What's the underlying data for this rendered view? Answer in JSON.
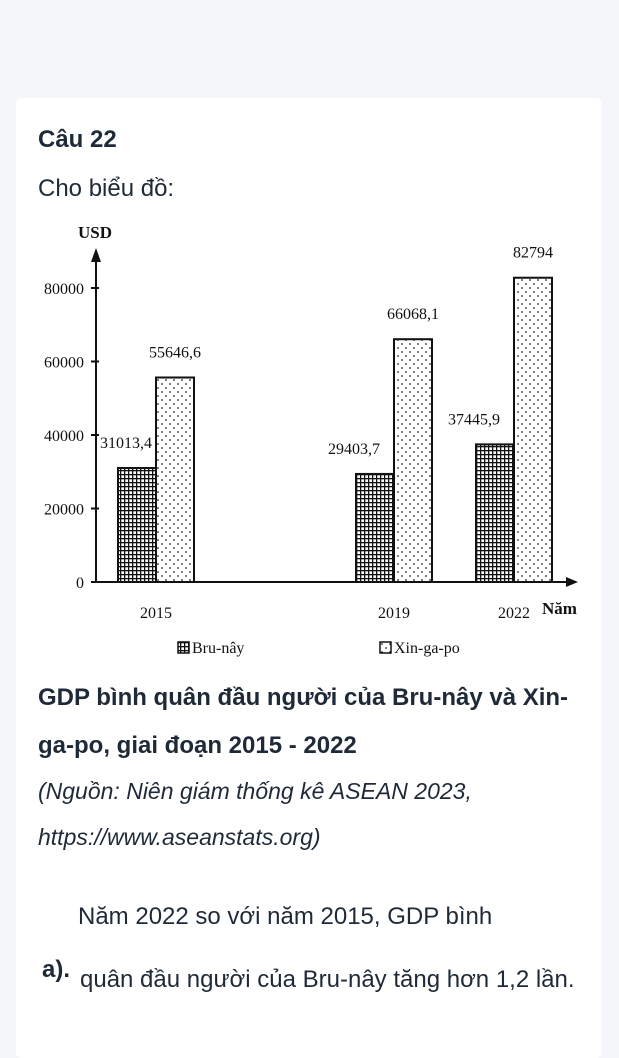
{
  "question": {
    "title": "Câu 22",
    "intro": "Cho biểu đồ:"
  },
  "chart_data": {
    "type": "bar",
    "ylabel": "USD",
    "xlabel": "Năm",
    "categories": [
      "2015",
      "2019",
      "2022"
    ],
    "series": [
      {
        "name": "Bru-nây",
        "values": [
          31013.4,
          29403.7,
          37445.9
        ],
        "labels": [
          "31013,4",
          "29403,7",
          "37445,9"
        ]
      },
      {
        "name": "Xin-ga-po",
        "values": [
          55646.6,
          66068.1,
          82794
        ],
        "labels": [
          "55646,6",
          "66068,1",
          "82794"
        ]
      }
    ],
    "yticks": [
      "0",
      "20000",
      "40000",
      "60000",
      "80000"
    ],
    "ylim": [
      0,
      90000
    ],
    "legend": "bottom",
    "grid": false
  },
  "caption": {
    "title": "GDP bình quân đầu người của Bru-nây và Xin-ga-po, giai đoạn 2015 - 2022",
    "source": "(Nguồn: Niên giám thống kê ASEAN 2023, https://www.aseanstats.org)"
  },
  "statement": {
    "label": "a).",
    "line1": "Năm 2022 so với năm 2015, GDP bình",
    "text": "quân đầu người của Bru-nây tăng hơn 1,2 lần."
  }
}
